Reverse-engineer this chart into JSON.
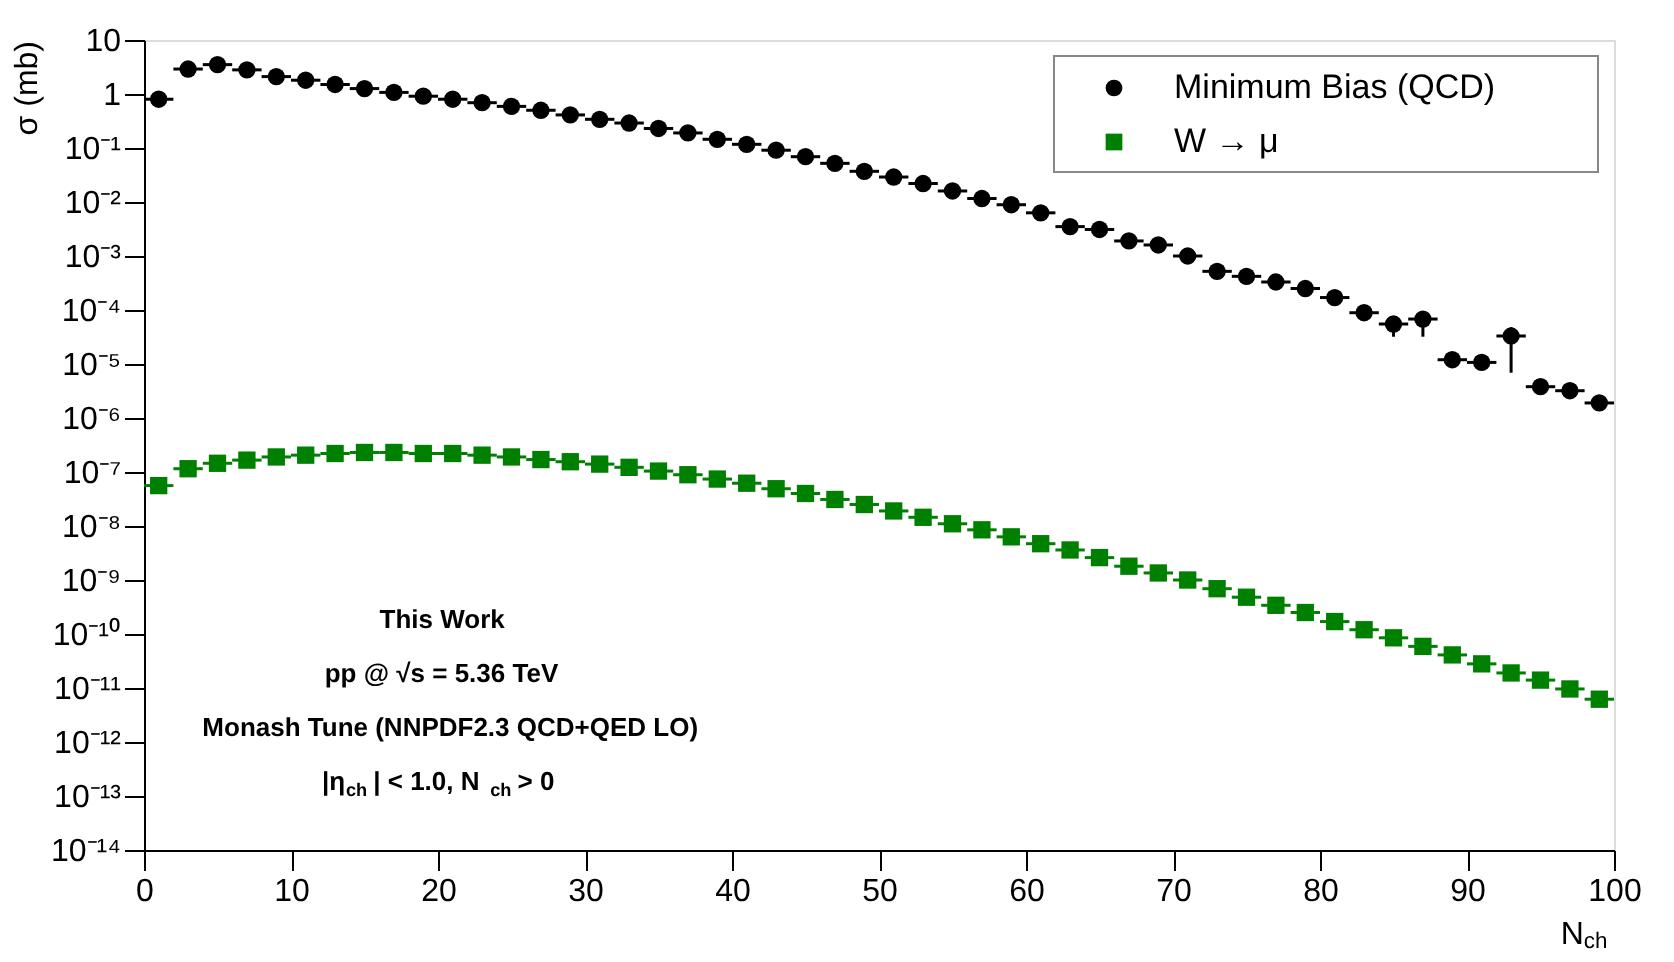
{
  "chart_data": {
    "type": "scatter",
    "xlabel": "N$_{ch}$",
    "ylabel": "σ (mb)",
    "log": "y",
    "x": [
      1,
      3,
      5,
      7,
      9,
      11,
      13,
      15,
      17,
      19,
      21,
      23,
      25,
      27,
      29,
      31,
      33,
      35,
      37,
      39,
      41,
      43,
      45,
      47,
      49,
      51,
      53,
      55,
      57,
      59,
      61,
      63,
      65,
      67,
      69,
      71,
      73,
      75,
      77,
      79,
      81,
      83,
      85,
      87,
      89,
      91,
      93,
      95,
      97,
      99
    ],
    "series": [
      {
        "name": "Minimum Bias (QCD)",
        "color": "#000000",
        "marker": "circle",
        "values": [
          0.8,
          2.9,
          3.5,
          2.8,
          2.1,
          1.8,
          1.5,
          1.26,
          1.07,
          0.91,
          0.8,
          0.69,
          0.59,
          0.5,
          0.41,
          0.34,
          0.29,
          0.23,
          0.19,
          0.145,
          0.117,
          0.091,
          0.069,
          0.052,
          0.037,
          0.029,
          0.022,
          0.016,
          0.0116,
          0.0089,
          0.0063,
          0.0035,
          0.0031,
          0.0019,
          0.0016,
          0.001,
          0.00052,
          0.00042,
          0.00033,
          0.00025,
          0.00017,
          8.9e-05,
          5.5e-05,
          6.8e-05,
          1.2e-05,
          1.07e-05,
          3.3e-05,
          3.8e-06,
          3.2e-06,
          1.9e-06
        ],
        "errors": [
          null,
          null,
          null,
          null,
          null,
          null,
          null,
          null,
          null,
          null,
          null,
          null,
          null,
          null,
          null,
          null,
          null,
          null,
          null,
          null,
          null,
          null,
          null,
          null,
          null,
          null,
          null,
          null,
          null,
          null,
          null,
          null,
          null,
          null,
          null,
          null,
          null,
          null,
          null,
          null,
          null,
          [
            7.2e-05,
            0.00011
          ],
          [
            3.2e-05,
            7.2e-05
          ],
          [
            3.2e-05,
            8.9e-05
          ],
          null,
          null,
          [
            6.9e-06,
            4.8e-05
          ],
          null,
          null,
          null
        ],
        "xerrors": [
          1,
          1,
          1,
          1,
          1,
          1,
          1,
          1,
          1,
          1,
          1,
          1,
          1,
          1,
          1,
          1,
          1,
          1,
          1,
          1,
          1,
          1,
          1,
          1,
          1,
          1,
          1,
          1,
          1,
          1,
          1,
          1,
          1,
          1,
          1,
          1,
          1,
          1,
          1,
          1,
          1,
          1,
          1,
          1,
          1,
          1,
          1,
          1,
          1,
          1
        ]
      },
      {
        "name": "W → μ",
        "color": "#008000",
        "marker": "square",
        "values": [
          5.6e-08,
          1.15e-07,
          1.45e-07,
          1.66e-07,
          1.9e-07,
          2.05e-07,
          2.2e-07,
          2.3e-07,
          2.3e-07,
          2.2e-07,
          2.2e-07,
          2.05e-07,
          1.9e-07,
          1.7e-07,
          1.55e-07,
          1.4e-07,
          1.22e-07,
          1.04e-07,
          8.9e-08,
          7.4e-08,
          6.2e-08,
          4.9e-08,
          4e-08,
          3.1e-08,
          2.5e-08,
          1.9e-08,
          1.45e-08,
          1.1e-08,
          8.5e-09,
          6.3e-09,
          4.7e-09,
          3.6e-09,
          2.6e-09,
          1.8e-09,
          1.35e-09,
          1e-09,
          6.9e-10,
          4.8e-10,
          3.4e-10,
          2.5e-10,
          1.7e-10,
          1.2e-10,
          8.5e-11,
          5.9e-11,
          4.1e-11,
          2.8e-11,
          1.9e-11,
          1.4e-11,
          9.6e-12,
          6.2e-12
        ],
        "xerrors": [
          1,
          1,
          1,
          1,
          1,
          1,
          1,
          1,
          1,
          1,
          1,
          1,
          1,
          1,
          1,
          1,
          1,
          1,
          1,
          1,
          1,
          1,
          1,
          1,
          1,
          1,
          1,
          1,
          1,
          1,
          1,
          1,
          1,
          1,
          1,
          1,
          1,
          1,
          1,
          1,
          1,
          1,
          1,
          1,
          1,
          1,
          1,
          1,
          1,
          1
        ]
      }
    ],
    "xlim": [
      0,
      100
    ],
    "xticks": [
      0,
      10,
      20,
      30,
      40,
      50,
      60,
      70,
      80,
      90,
      100
    ],
    "ylim": [
      1e-14,
      10
    ],
    "yticks": [
      {
        "value": 1e-14,
        "label": "10⁻¹⁴"
      },
      {
        "value": 1e-13,
        "label": "10⁻¹³"
      },
      {
        "value": 1e-12,
        "label": "10⁻¹²"
      },
      {
        "value": 1e-11,
        "label": "10⁻¹¹"
      },
      {
        "value": 1e-10,
        "label": "10⁻¹⁰"
      },
      {
        "value": 1e-09,
        "label": "10⁻⁹"
      },
      {
        "value": 1e-08,
        "label": "10⁻⁸"
      },
      {
        "value": 1e-07,
        "label": "10⁻⁷"
      },
      {
        "value": 1e-06,
        "label": "10⁻⁶"
      },
      {
        "value": 1e-05,
        "label": "10⁻⁵"
      },
      {
        "value": 0.0001,
        "label": "10⁻⁴"
      },
      {
        "value": 0.001,
        "label": "10⁻³"
      },
      {
        "value": 0.01,
        "label": "10⁻²"
      },
      {
        "value": 0.1,
        "label": "10⁻¹"
      },
      1,
      10
    ],
    "grid": false,
    "legend": "top right",
    "annotations": [
      "This Work",
      "pp @ √s = 5.36 TeV",
      "Monash Tune (NNPDF2.3 QCD+QED LO)",
      "|η$_{ch}$| < 1.0, N$_{ch}$ > 0"
    ]
  }
}
